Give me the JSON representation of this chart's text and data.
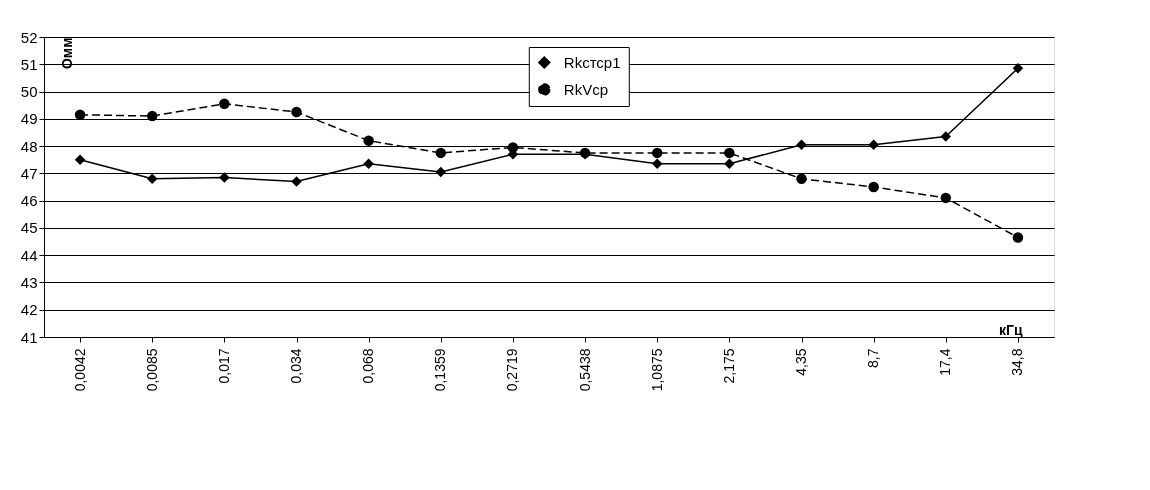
{
  "chart_data": {
    "type": "line",
    "xlabel": "кГц",
    "ylabel": "Омм",
    "categories": [
      "0,0042",
      "0,0085",
      "0,017",
      "0,034",
      "0,068",
      "0,1359",
      "0,2719",
      "0,5438",
      "1,0875",
      "2,175",
      "4,35",
      "8,7",
      "17,4",
      "34,8"
    ],
    "series": [
      {
        "name": "Rkстср1",
        "color": "#000000",
        "marker": "diamond",
        "line_style": "solid",
        "values": [
          47.5,
          46.8,
          46.85,
          46.7,
          47.35,
          47.05,
          47.7,
          47.7,
          47.35,
          47.35,
          48.05,
          48.05,
          48.35,
          50.85
        ]
      },
      {
        "name": "RkVср",
        "color": "#000000",
        "marker": "circle",
        "line_style": "dashed",
        "values": [
          49.15,
          49.1,
          49.55,
          49.25,
          48.2,
          47.75,
          47.95,
          47.75,
          47.75,
          47.75,
          46.8,
          46.5,
          46.1,
          44.65
        ]
      }
    ],
    "ylim": [
      41,
      52
    ],
    "yticks": [
      41,
      42,
      43,
      44,
      45,
      46,
      47,
      48,
      49,
      50,
      51,
      52
    ],
    "grid": "y",
    "legend": "top"
  }
}
